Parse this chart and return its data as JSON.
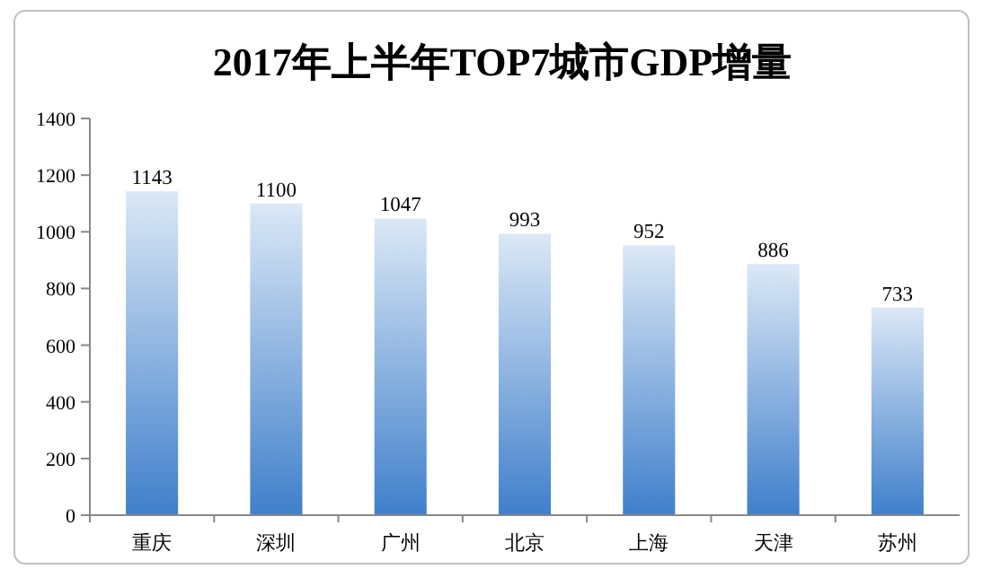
{
  "chart_data": {
    "type": "bar",
    "title": "2017年上半年TOP7城市GDP增量",
    "categories": [
      "重庆",
      "深圳",
      "广州",
      "北京",
      "上海",
      "天津",
      "苏州"
    ],
    "values": [
      1143,
      1100,
      1047,
      993,
      952,
      886,
      733
    ],
    "color": "#3f7fcb",
    "ylim": [
      0,
      1400
    ],
    "yticks": [
      0,
      200,
      400,
      600,
      800,
      1000,
      1200,
      1400
    ],
    "data_labels": true
  }
}
